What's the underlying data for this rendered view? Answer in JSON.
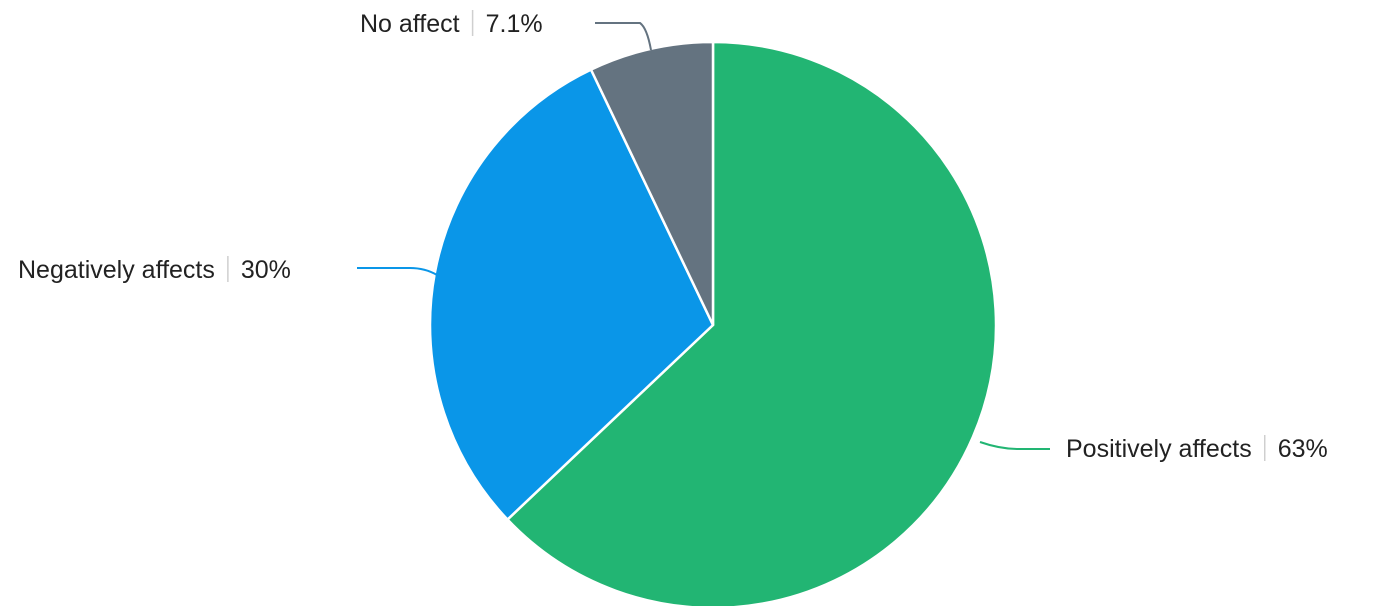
{
  "chart_data": {
    "type": "pie",
    "start": "top",
    "direction": "clockwise",
    "slices": [
      {
        "label": "Positively affects",
        "value": 63,
        "display": "63%",
        "color": "#22b573"
      },
      {
        "label": "Negatively affects",
        "value": 30,
        "display": "30%",
        "color": "#0a96e8"
      },
      {
        "label": "No affect",
        "value": 7.1,
        "display": "7.1%",
        "color": "#647380"
      }
    ],
    "slice_border_color": "#ffffff",
    "label_placement": "outside-with-leader-lines",
    "legend": "none"
  }
}
